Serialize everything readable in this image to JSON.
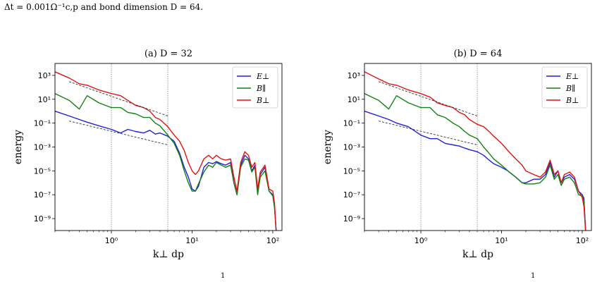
{
  "caption_top": "Δt = 0.001Ω⁻¹c,p and bond dimension D = 64.",
  "caption_bottom_left": "1",
  "caption_bottom_right": "1",
  "chart_data": [
    {
      "type": "line",
      "title": "(a) D = 32",
      "xlabel": "k⊥ dp",
      "ylabel": "energy",
      "xscale": "log",
      "yscale": "log",
      "xlim": [
        0.2,
        130
      ],
      "ylim": [
        1e-10,
        10000.0
      ],
      "xticks": [
        {
          "v": 1,
          "label": "10⁰"
        },
        {
          "v": 10,
          "label": "10¹"
        },
        {
          "v": 100,
          "label": "10²"
        }
      ],
      "yticks": [
        {
          "v": 1000.0,
          "label": "10³"
        },
        {
          "v": 10,
          "label": "10¹"
        },
        {
          "v": 0.1,
          "label": "10⁻¹"
        },
        {
          "v": 0.001,
          "label": "10⁻³"
        },
        {
          "v": 1e-05,
          "label": "10⁻⁵"
        },
        {
          "v": 1e-07,
          "label": "10⁻⁷"
        },
        {
          "v": 1e-09,
          "label": "10⁻⁹"
        }
      ],
      "vlines": [
        1,
        5
      ],
      "legend_position": "top-right",
      "series": [
        {
          "name": "E⊥",
          "color": "#1f1fe0",
          "x": [
            0.2,
            0.3,
            0.4,
            0.5,
            0.7,
            1.0,
            1.3,
            1.6,
            2.0,
            2.5,
            3.0,
            3.5,
            4.0,
            5.0,
            6.0,
            7.0,
            8.0,
            9.0,
            10,
            11,
            12,
            14,
            16,
            18,
            20,
            23,
            26,
            30,
            33,
            36,
            40,
            45,
            50,
            55,
            60,
            65,
            70,
            80,
            90,
            100,
            105,
            110
          ],
          "y": [
            1,
            0.4,
            0.2,
            0.12,
            0.06,
            0.03,
            0.015,
            0.03,
            0.02,
            0.015,
            0.025,
            0.012,
            0.015,
            0.008,
            0.003,
            0.0003,
            2e-05,
            3e-06,
            3e-07,
            2e-07,
            5e-07,
            2e-05,
            5e-05,
            4e-05,
            6e-05,
            4e-05,
            3e-05,
            5e-05,
            1e-06,
            1e-07,
            3e-05,
            0.0002,
            0.0001,
            1e-05,
            3e-05,
            2e-07,
            5e-06,
            2e-05,
            2e-07,
            1e-07,
            1e-08,
            1e-10
          ]
        },
        {
          "name": "B∥",
          "color": "#138013",
          "x": [
            0.2,
            0.3,
            0.4,
            0.5,
            0.7,
            1.0,
            1.3,
            1.6,
            2.0,
            2.5,
            3.0,
            3.5,
            4.0,
            5.0,
            6.0,
            7.0,
            8.0,
            9.0,
            10,
            11,
            12,
            14,
            16,
            18,
            20,
            23,
            26,
            30,
            33,
            36,
            40,
            45,
            50,
            55,
            60,
            65,
            70,
            80,
            90,
            100,
            105,
            110
          ],
          "y": [
            30,
            8,
            1.5,
            20,
            5,
            2,
            2,
            0.8,
            0.6,
            0.3,
            0.3,
            0.1,
            0.06,
            0.01,
            0.002,
            0.0002,
            1e-05,
            1e-06,
            2e-07,
            2e-07,
            8e-07,
            8e-06,
            3e-05,
            2e-05,
            5e-05,
            3e-05,
            2e-05,
            3e-05,
            1e-06,
            1e-07,
            2e-05,
            0.0001,
            8e-05,
            8e-06,
            2e-05,
            1e-07,
            3e-06,
            1e-05,
            2e-07,
            8e-08,
            8e-09,
            1e-10
          ]
        },
        {
          "name": "B⊥",
          "color": "#e11313",
          "x": [
            0.2,
            0.3,
            0.4,
            0.5,
            0.7,
            1.0,
            1.3,
            1.6,
            2.0,
            2.5,
            3.0,
            3.5,
            4.0,
            5.0,
            6.0,
            7.0,
            8.0,
            9.0,
            10,
            11,
            12,
            14,
            16,
            18,
            20,
            23,
            26,
            30,
            33,
            36,
            40,
            45,
            50,
            55,
            60,
            65,
            70,
            80,
            90,
            100,
            105,
            110
          ],
          "y": [
            2000,
            600,
            200,
            150,
            60,
            30,
            20,
            8,
            3,
            2,
            1,
            0.3,
            0.2,
            0.05,
            0.01,
            0.003,
            0.0005,
            5e-05,
            1e-05,
            5e-06,
            1e-05,
            0.0001,
            0.0002,
            0.0001,
            0.0002,
            0.0001,
            8e-05,
            0.0001,
            3e-06,
            2e-07,
            5e-05,
            0.0004,
            0.0002,
            2e-05,
            5e-05,
            3e-07,
            8e-06,
            3e-05,
            3e-07,
            2e-07,
            2e-08,
            1e-10
          ]
        }
      ],
      "reference_lines": [
        {
          "x": [
            0.3,
            5
          ],
          "y": [
            300,
            0.4
          ]
        },
        {
          "x": [
            0.3,
            5
          ],
          "y": [
            0.15,
            0.0015
          ]
        }
      ]
    },
    {
      "type": "line",
      "title": "(b) D = 64",
      "xlabel": "k⊥ dp",
      "ylabel": "energy",
      "xscale": "log",
      "yscale": "log",
      "xlim": [
        0.2,
        130
      ],
      "ylim": [
        1e-10,
        10000.0
      ],
      "xticks": [
        {
          "v": 1,
          "label": "10⁰"
        },
        {
          "v": 10,
          "label": "10¹"
        },
        {
          "v": 100,
          "label": "10²"
        }
      ],
      "yticks": [
        {
          "v": 1000.0,
          "label": "10³"
        },
        {
          "v": 10,
          "label": "10¹"
        },
        {
          "v": 0.1,
          "label": "10⁻¹"
        },
        {
          "v": 0.001,
          "label": "10⁻³"
        },
        {
          "v": 1e-05,
          "label": "10⁻⁵"
        },
        {
          "v": 1e-07,
          "label": "10⁻⁷"
        },
        {
          "v": 1e-09,
          "label": "10⁻⁹"
        }
      ],
      "vlines": [
        1,
        5
      ],
      "legend_position": "top-right",
      "series": [
        {
          "name": "E⊥",
          "color": "#1f1fe0",
          "x": [
            0.2,
            0.3,
            0.4,
            0.5,
            0.7,
            1.0,
            1.3,
            1.6,
            2.0,
            2.5,
            3.0,
            3.5,
            4.0,
            5.0,
            6.0,
            7.0,
            8.0,
            10,
            12,
            15,
            18,
            20,
            25,
            30,
            35,
            40,
            45,
            50,
            55,
            60,
            70,
            80,
            90,
            100,
            105,
            110
          ],
          "y": [
            1,
            0.4,
            0.2,
            0.1,
            0.05,
            0.01,
            0.005,
            0.005,
            0.002,
            0.0015,
            0.0012,
            0.0008,
            0.0006,
            0.0004,
            0.0002,
            8e-05,
            4e-05,
            2e-05,
            1e-05,
            3e-06,
            1e-06,
            1e-06,
            2e-06,
            2e-06,
            5e-06,
            5e-05,
            3e-06,
            1e-05,
            1e-06,
            3e-06,
            5e-06,
            2e-06,
            2e-07,
            1e-07,
            5e-08,
            1e-10
          ]
        },
        {
          "name": "B∥",
          "color": "#138013",
          "x": [
            0.2,
            0.3,
            0.4,
            0.5,
            0.7,
            1.0,
            1.3,
            1.6,
            2.0,
            2.5,
            3.0,
            3.5,
            4.0,
            5.0,
            6.0,
            7.0,
            8.0,
            10,
            12,
            15,
            18,
            20,
            25,
            30,
            35,
            40,
            45,
            50,
            55,
            60,
            70,
            80,
            90,
            100,
            105,
            110
          ],
          "y": [
            30,
            8,
            1.5,
            20,
            5,
            2,
            2,
            0.5,
            0.3,
            0.1,
            0.05,
            0.02,
            0.01,
            0.005,
            0.001,
            0.0003,
            0.0001,
            3e-05,
            1e-05,
            3e-06,
            1e-06,
            8e-07,
            8e-07,
            1e-06,
            3e-06,
            3e-05,
            2e-06,
            5e-06,
            6e-07,
            2e-06,
            3e-06,
            1e-06,
            1e-07,
            8e-08,
            3e-08,
            1e-10
          ]
        },
        {
          "name": "B⊥",
          "color": "#e11313",
          "x": [
            0.2,
            0.3,
            0.4,
            0.5,
            0.7,
            1.0,
            1.3,
            1.6,
            2.0,
            2.5,
            3.0,
            3.5,
            4.0,
            5.0,
            6.0,
            7.0,
            8.0,
            10,
            12,
            15,
            18,
            20,
            25,
            30,
            35,
            40,
            45,
            50,
            55,
            60,
            70,
            80,
            90,
            100,
            105,
            110
          ],
          "y": [
            2000,
            500,
            200,
            150,
            60,
            30,
            15,
            5,
            3,
            2,
            0.8,
            0.5,
            0.2,
            0.08,
            0.05,
            0.02,
            0.008,
            0.002,
            0.0005,
            0.0001,
            3e-05,
            1e-05,
            5e-06,
            3e-06,
            8e-06,
            8e-05,
            5e-06,
            1e-05,
            1e-06,
            5e-06,
            8e-06,
            3e-06,
            2e-07,
            6e-08,
            1e-08,
            1e-10
          ]
        }
      ],
      "reference_lines": [
        {
          "x": [
            0.3,
            5
          ],
          "y": [
            300,
            0.4
          ]
        },
        {
          "x": [
            0.3,
            5
          ],
          "y": [
            0.15,
            0.0015
          ]
        }
      ]
    }
  ]
}
